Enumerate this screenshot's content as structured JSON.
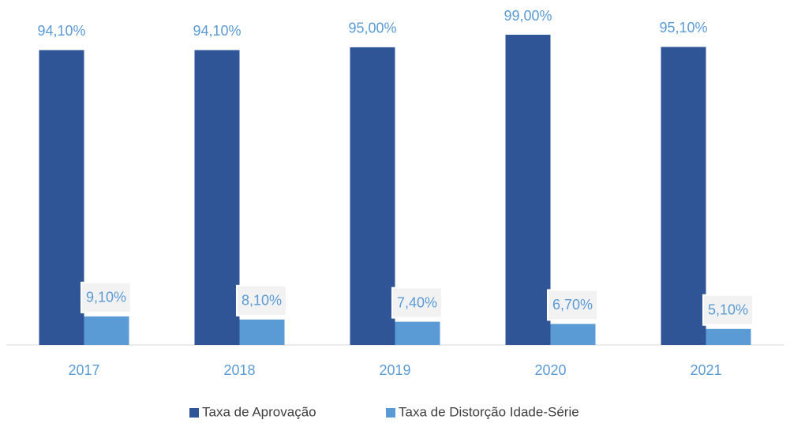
{
  "chart_data": {
    "type": "bar",
    "categories": [
      "2017",
      "2018",
      "2019",
      "2020",
      "2021"
    ],
    "series": [
      {
        "name": "Taxa de Aprovação",
        "color": "#2f5597",
        "values": [
          94.1,
          94.1,
          95.0,
          99.0,
          95.1
        ],
        "value_labels": [
          "94,10%",
          "94,10%",
          "95,00%",
          "99,00%",
          "95,10%"
        ]
      },
      {
        "name": "Taxa de Distorção Idade-Série",
        "color": "#5b9bd5",
        "values": [
          9.1,
          8.1,
          7.4,
          6.7,
          5.1
        ],
        "value_labels": [
          "9,10%",
          "8,10%",
          "7,40%",
          "6,70%",
          "5,10%"
        ]
      }
    ],
    "legend": "bottom"
  }
}
